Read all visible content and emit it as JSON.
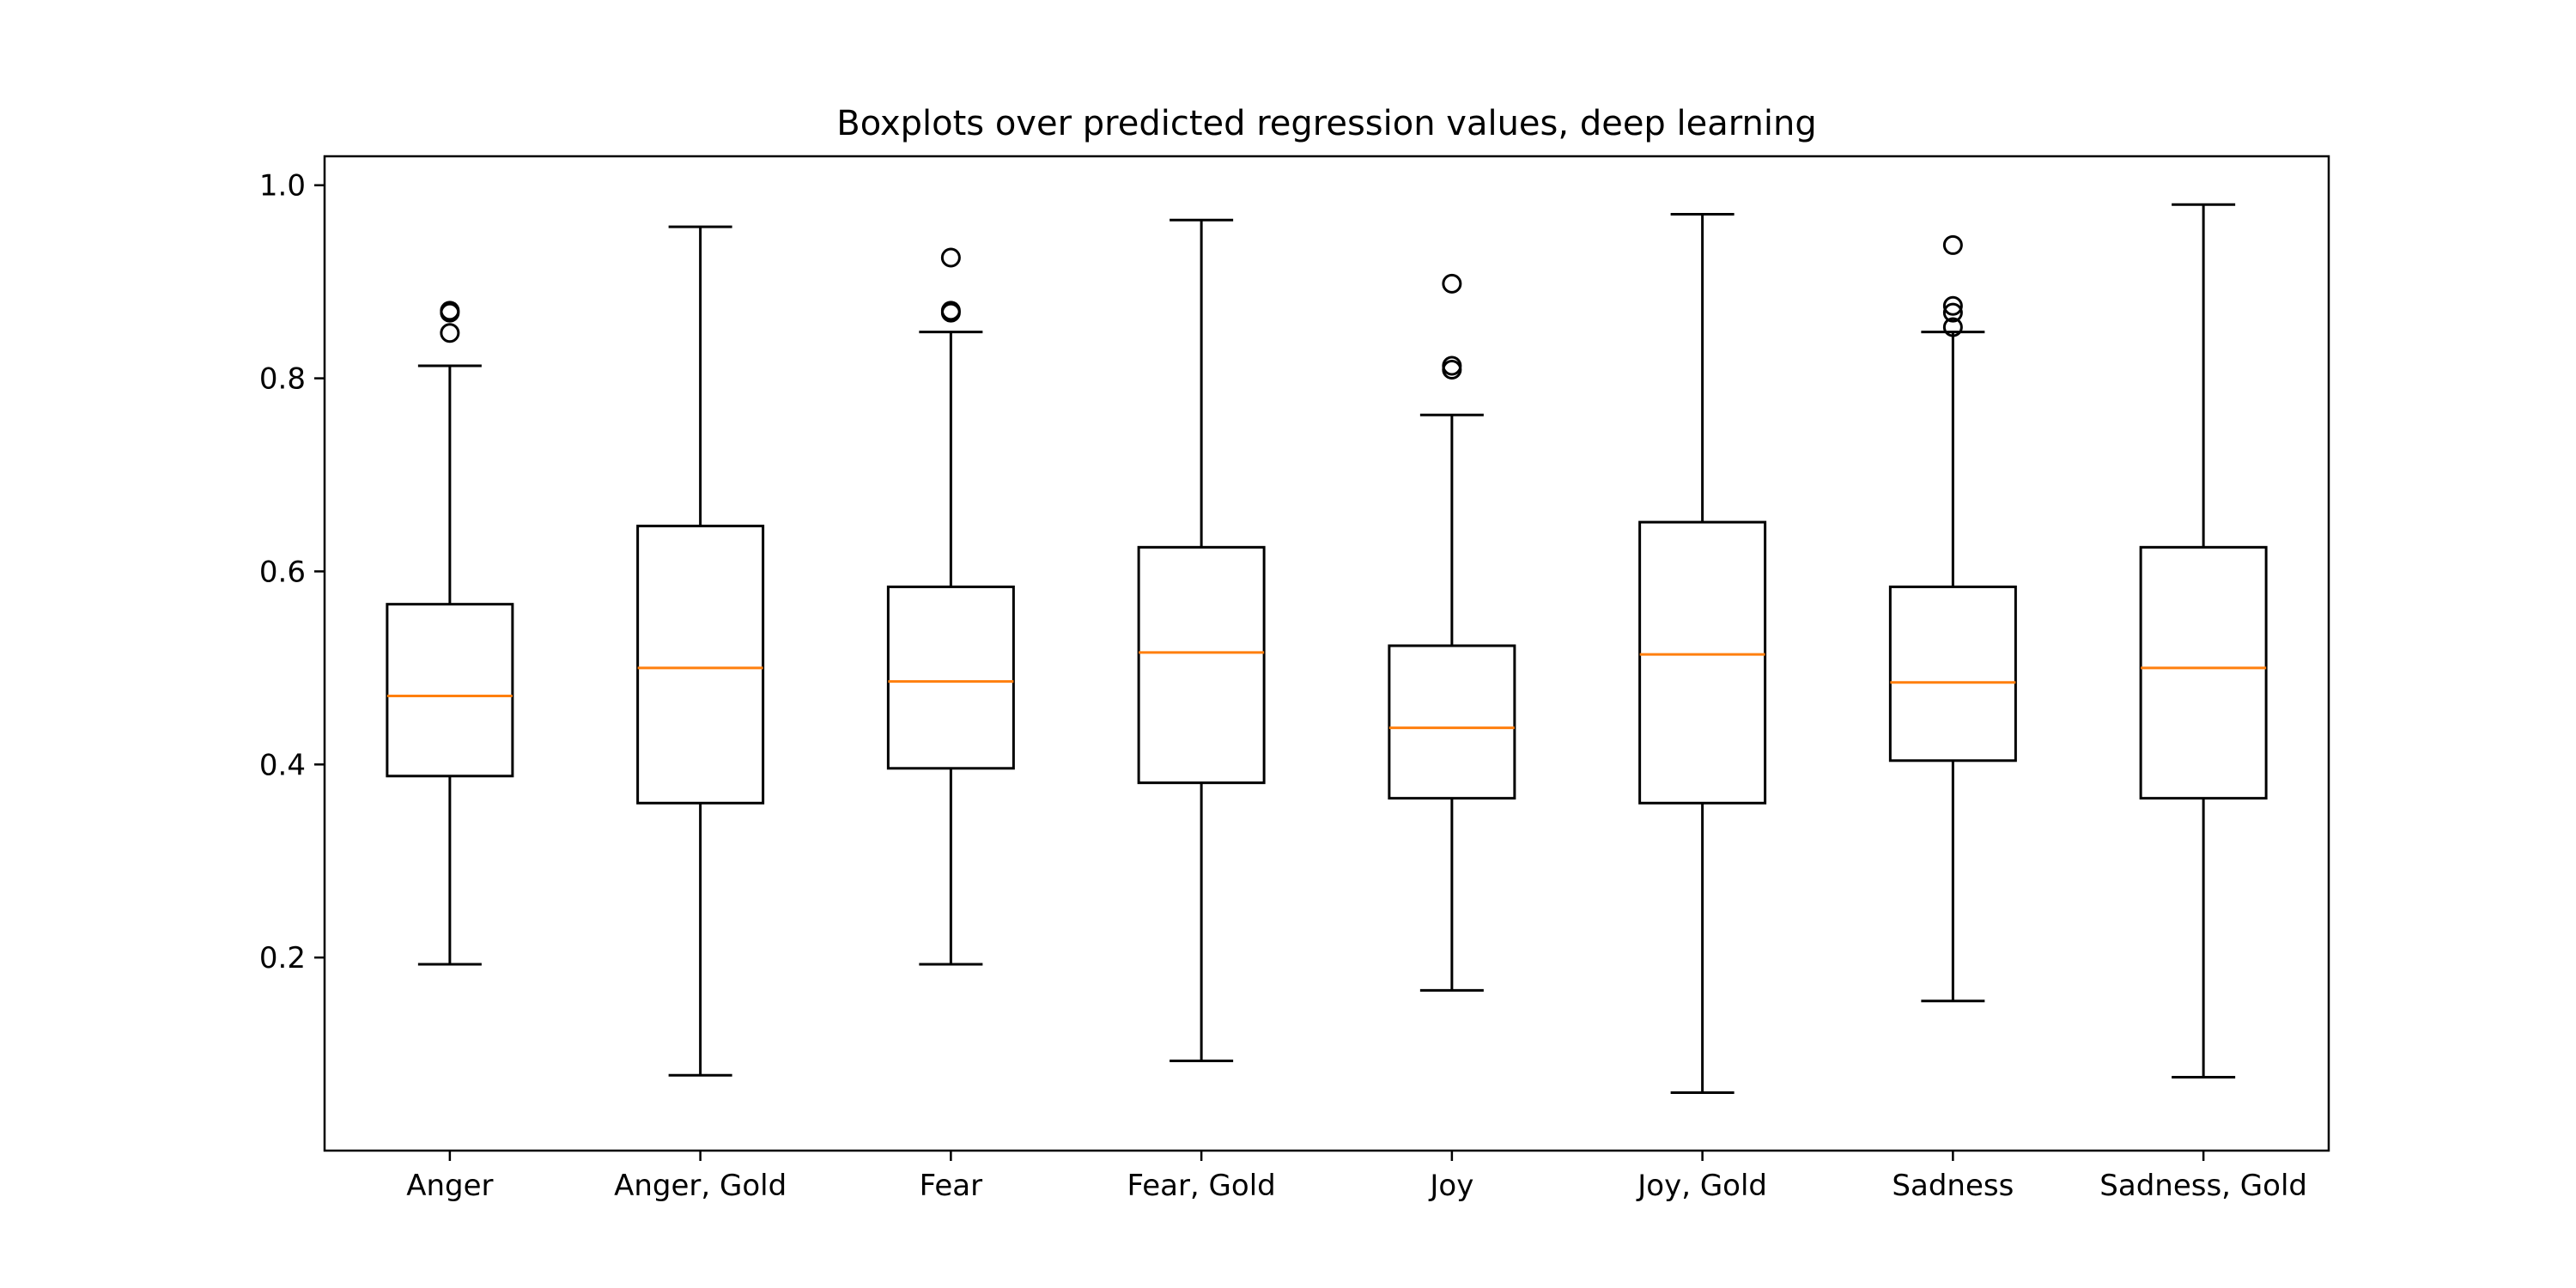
{
  "chart_data": {
    "type": "box",
    "title": "Boxplots over predicted regression values, deep learning",
    "xlabel": "",
    "ylabel": "",
    "ylim": [
      0.0,
      1.03
    ],
    "yticks": [
      0.2,
      0.4,
      0.6,
      0.8,
      1.0
    ],
    "ytick_labels": [
      "0.2",
      "0.4",
      "0.6",
      "0.8",
      "1.0"
    ],
    "grid": false,
    "colors": {
      "box": "#000000",
      "median": "#ff7f0e",
      "flier": "#000000"
    },
    "categories": [
      "Anger",
      "Anger, Gold",
      "Fear",
      "Fear, Gold",
      "Joy",
      "Joy, Gold",
      "Sadness",
      "Sadness, Gold"
    ],
    "boxes": [
      {
        "label": "Anger",
        "whisker_low": 0.193,
        "q1": 0.388,
        "median": 0.471,
        "q3": 0.566,
        "whisker_high": 0.813,
        "fliers": [
          0.847,
          0.868,
          0.87
        ]
      },
      {
        "label": "Anger, Gold",
        "whisker_low": 0.078,
        "q1": 0.36,
        "median": 0.5,
        "q3": 0.647,
        "whisker_high": 0.957,
        "fliers": []
      },
      {
        "label": "Fear",
        "whisker_low": 0.193,
        "q1": 0.396,
        "median": 0.486,
        "q3": 0.584,
        "whisker_high": 0.848,
        "fliers": [
          0.868,
          0.87,
          0.925
        ]
      },
      {
        "label": "Fear, Gold",
        "whisker_low": 0.093,
        "q1": 0.381,
        "median": 0.516,
        "q3": 0.625,
        "whisker_high": 0.964,
        "fliers": []
      },
      {
        "label": "Joy",
        "whisker_low": 0.166,
        "q1": 0.365,
        "median": 0.438,
        "q3": 0.523,
        "whisker_high": 0.762,
        "fliers": [
          0.809,
          0.813,
          0.898
        ]
      },
      {
        "label": "Joy, Gold",
        "whisker_low": 0.06,
        "q1": 0.36,
        "median": 0.514,
        "q3": 0.651,
        "whisker_high": 0.97,
        "fliers": []
      },
      {
        "label": "Sadness",
        "whisker_low": 0.155,
        "q1": 0.404,
        "median": 0.485,
        "q3": 0.584,
        "whisker_high": 0.848,
        "fliers": [
          0.853,
          0.868,
          0.875,
          0.938
        ]
      },
      {
        "label": "Sadness, Gold",
        "whisker_low": 0.076,
        "q1": 0.365,
        "median": 0.5,
        "q3": 0.625,
        "whisker_high": 0.98,
        "fliers": []
      }
    ]
  }
}
